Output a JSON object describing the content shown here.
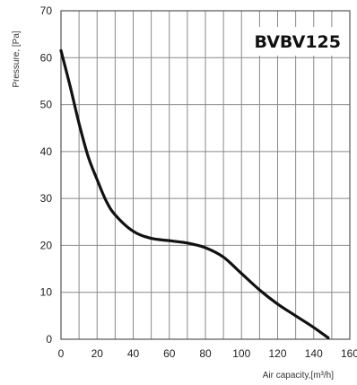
{
  "chart_data": {
    "type": "line",
    "title": "BVBV125",
    "xlabel": "Air capacity,[m³/h]",
    "ylabel": "Pressure, [Pa]",
    "xlim": [
      0,
      160
    ],
    "ylim": [
      0,
      70
    ],
    "x_ticks": [
      0,
      20,
      40,
      60,
      80,
      100,
      120,
      140,
      160
    ],
    "y_ticks": [
      0,
      10,
      20,
      30,
      40,
      50,
      60,
      70
    ],
    "x_grid_step": 10,
    "grid": true,
    "series": [
      {
        "color": "#111111",
        "x": [
          0,
          5,
          10,
          15,
          20,
          25,
          30,
          40,
          50,
          60,
          70,
          80,
          90,
          100,
          110,
          120,
          130,
          140,
          148
        ],
        "y": [
          61.5,
          54,
          46,
          39,
          34,
          29.5,
          26.5,
          23,
          21.5,
          21,
          20.5,
          19.5,
          17.5,
          14,
          10.5,
          7.5,
          5,
          2.5,
          0.3
        ]
      }
    ]
  }
}
